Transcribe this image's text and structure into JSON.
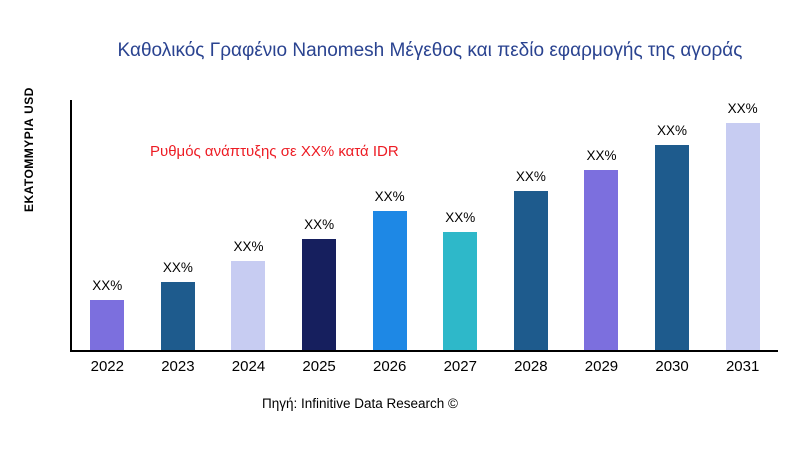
{
  "title": "Καθολικός Γραφένιο Nanomesh Μέγεθος και πεδίο εφαρμογής της αγοράς",
  "title_color": "#2A4390",
  "y_axis_label": "ΕΚΑΤΟΜΜΥΡΙΑ USD",
  "annotation": {
    "text": "Ρυθμός ανάπτυξης σε XX% κατά IDR",
    "color": "#ED1C24"
  },
  "source": "Πηγή: Infinitive Data Research ©",
  "chart_data": {
    "type": "bar",
    "title": "Καθολικός Γραφένιο Nanomesh Μέγεθος και πεδίο εφαρμογής της αγοράς",
    "xlabel": "",
    "ylabel": "ΕΚΑΤΟΜΜΥΡΙΑ USD",
    "categories": [
      "2022",
      "2023",
      "2024",
      "2025",
      "2026",
      "2027",
      "2028",
      "2029",
      "2030",
      "2031"
    ],
    "values": [
      22,
      30,
      39,
      49,
      61,
      52,
      70,
      79,
      90,
      100
    ],
    "value_labels": [
      "XX%",
      "XX%",
      "XX%",
      "XX%",
      "XX%",
      "XX%",
      "XX%",
      "XX%",
      "XX%",
      "XX%"
    ],
    "bar_colors": [
      "#7C6FDE",
      "#1E5B8D",
      "#C7CCF2",
      "#161F5E",
      "#1E88E5",
      "#2EB8C9",
      "#1E5B8D",
      "#7C6FDE",
      "#1E5B8D",
      "#C7CCF2"
    ],
    "ylim": [
      0,
      110
    ],
    "grid": false,
    "legend": false
  }
}
